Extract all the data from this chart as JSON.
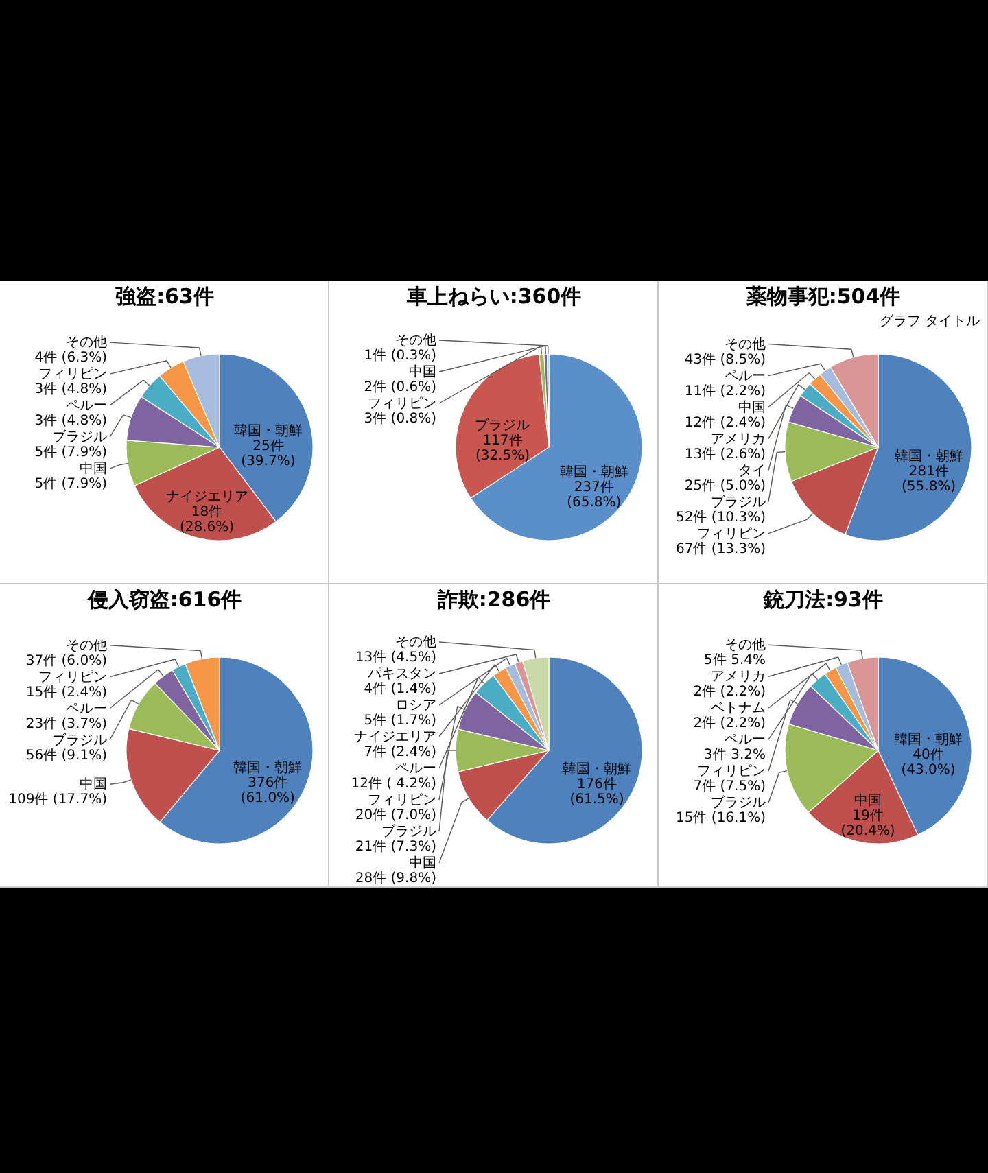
{
  "chart_data": [
    {
      "type": "pie",
      "title": "強盗:63件",
      "categories": [
        "韓国・朝鮮",
        "ナイジエリア",
        "中国",
        "ブラジル",
        "ペルー",
        "フィリピン",
        "その他"
      ],
      "values": [
        25,
        18,
        5,
        5,
        3,
        3,
        4
      ],
      "value_labels": [
        "25件 (39.7%)",
        "18件 (28.6%)",
        "5件 (7.9%)",
        "5件 (7.9%)",
        "3件 (4.8%)",
        "3件 (4.8%)",
        "4件 (6.3%)"
      ],
      "colors": [
        "#4f81bd",
        "#c0504d",
        "#9bbb59",
        "#8064a2",
        "#4bacc6",
        "#f79646",
        "#a5bcdc"
      ]
    },
    {
      "type": "pie",
      "title": "車上ねらい:360件",
      "categories": [
        "韓国・朝鮮",
        "ブラジル",
        "フィリピン",
        "中国",
        "その他"
      ],
      "values": [
        237,
        117,
        3,
        2,
        1
      ],
      "value_labels": [
        "237件 (65.8%)",
        "117件 (32.5%)",
        "3件 (0.8%)",
        "2件 (0.6%)",
        "1件 (0.3%)"
      ],
      "colors": [
        "#5a8fc9",
        "#c9574f",
        "#9bbb59",
        "#8064a2",
        "#4bacc6"
      ]
    },
    {
      "type": "pie",
      "title": "薬物事犯:504件",
      "categories": [
        "韓国・朝鮮",
        "フィリピン",
        "ブラジル",
        "タイ",
        "アメリカ",
        "中国",
        "ペルー",
        "その他"
      ],
      "values": [
        281,
        67,
        52,
        25,
        13,
        12,
        11,
        43
      ],
      "value_labels": [
        "281件 (55.8%)",
        "67件 (13.3%)",
        "52件 (10.3%)",
        "25件 (5.0%)",
        "13件 (2.6%)",
        "12件 (2.4%)",
        "11件 (2.2%)",
        "43件 (8.5%)"
      ],
      "colors": [
        "#4f81bd",
        "#c0504d",
        "#9bbb59",
        "#8064a2",
        "#4bacc6",
        "#f79646",
        "#a5bcdc",
        "#d99694"
      ],
      "annotations": [
        "グラフ タイトル"
      ]
    },
    {
      "type": "pie",
      "title": "侵入窃盗:616件",
      "categories": [
        "韓国・朝鮮",
        "中国",
        "ブラジル",
        "ペルー",
        "フィリピン",
        "その他"
      ],
      "values": [
        376,
        109,
        56,
        23,
        15,
        37
      ],
      "value_labels": [
        "376件 (61.0%)",
        "109件 (17.7%)",
        "56件 (9.1%)",
        "23件 (3.7%)",
        "15件 (2.4%)",
        "37件 (6.0%)"
      ],
      "colors": [
        "#4f81bd",
        "#c0504d",
        "#9bbb59",
        "#8064a2",
        "#4bacc6",
        "#f79646"
      ]
    },
    {
      "type": "pie",
      "title": "詐欺:286件",
      "categories": [
        "韓国・朝鮮",
        "中国",
        "ブラジル",
        "フィリピン",
        "ペルー",
        "ナイジエリア",
        "ロシア",
        "パキスタン",
        "その他"
      ],
      "values": [
        176,
        28,
        21,
        20,
        12,
        7,
        5,
        4,
        13
      ],
      "value_labels": [
        "176件 (61.5%)",
        "28件 (9.8%)",
        "21件 (7.3%)",
        "20件 (7.0%)",
        "12件 ( 4.2%)",
        "7件 (2.4%)",
        "5件 (1.7%)",
        "4件 (1.4%)",
        "13件 (4.5%)"
      ],
      "colors": [
        "#4f81bd",
        "#c0504d",
        "#9bbb59",
        "#8064a2",
        "#4bacc6",
        "#f79646",
        "#a5bcdc",
        "#d99694",
        "#c9d9a5"
      ]
    },
    {
      "type": "pie",
      "title": "銃刀法:93件",
      "categories": [
        "韓国・朝鮮",
        "中国",
        "ブラジル",
        "フィリピン",
        "ペルー",
        "ベトナム",
        "アメリカ",
        "その他"
      ],
      "values": [
        40,
        19,
        15,
        7,
        3,
        2,
        2,
        5
      ],
      "value_labels": [
        "40件 (43.0%)",
        "19件 (20.4%)",
        "15件 (16.1%)",
        "7件 (7.5%)",
        "3件 3.2%",
        "2件 (2.2%)",
        "2件 (2.2%)",
        "5件 5.4%"
      ],
      "colors": [
        "#4f81bd",
        "#c0504d",
        "#9bbb59",
        "#8064a2",
        "#4bacc6",
        "#f79646",
        "#a5bcdc",
        "#d99694"
      ]
    }
  ]
}
